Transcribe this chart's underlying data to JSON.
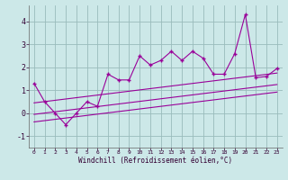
{
  "x_data": [
    0,
    1,
    2,
    3,
    4,
    5,
    6,
    7,
    8,
    9,
    10,
    11,
    12,
    13,
    14,
    15,
    16,
    17,
    18,
    19,
    20,
    21,
    22,
    23
  ],
  "y_data": [
    1.3,
    0.5,
    0.0,
    -0.5,
    0.0,
    0.5,
    0.3,
    1.7,
    1.45,
    1.45,
    2.5,
    2.1,
    2.3,
    2.7,
    2.3,
    2.7,
    2.4,
    1.7,
    1.7,
    2.6,
    4.3,
    1.55,
    1.6,
    1.95
  ],
  "line1_x": [
    0,
    23
  ],
  "line1_y": [
    0.45,
    1.75
  ],
  "line2_x": [
    0,
    23
  ],
  "line2_y": [
    -0.05,
    1.25
  ],
  "line3_x": [
    0,
    23
  ],
  "line3_y": [
    -0.38,
    0.92
  ],
  "color": "#990099",
  "bg_color": "#cce8e8",
  "grid_color": "#99bbbb",
  "xlim": [
    -0.5,
    23.5
  ],
  "ylim": [
    -1.5,
    4.7
  ],
  "yticks": [
    -1,
    0,
    1,
    2,
    3,
    4
  ],
  "xticks": [
    0,
    1,
    2,
    3,
    4,
    5,
    6,
    7,
    8,
    9,
    10,
    11,
    12,
    13,
    14,
    15,
    16,
    17,
    18,
    19,
    20,
    21,
    22,
    23
  ],
  "xlabel": "Windchill (Refroidissement éolien,°C)",
  "marker_size": 3.5,
  "line_width": 0.8
}
